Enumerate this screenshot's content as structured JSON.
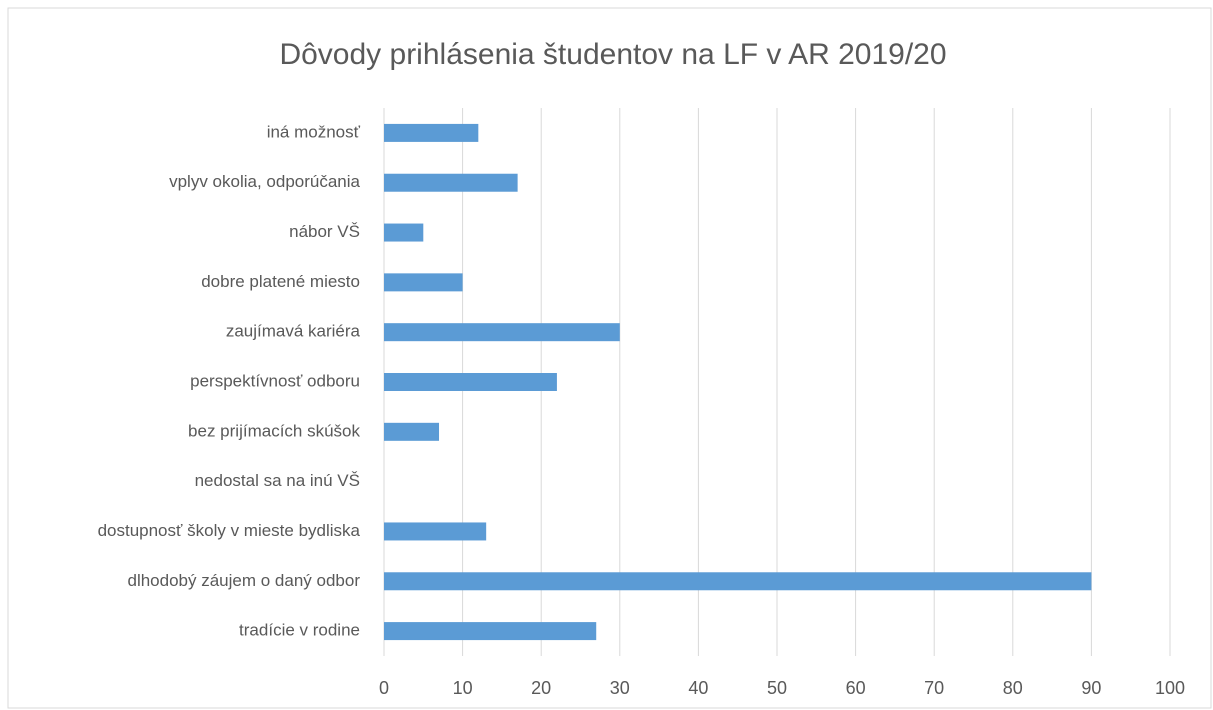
{
  "chart_data": {
    "type": "bar",
    "horizontal": true,
    "title": "Dôvody prihlásenia študentov na LF v AR 2019/20",
    "categories": [
      "iná možnosť",
      "vplyv okolia, odporúčania",
      "nábor VŠ",
      "dobre platené miesto",
      "zaujímavá kariéra",
      "perspektívnosť odboru",
      "bez prijímacích skúšok",
      "nedostal sa na inú VŠ",
      "dostupnosť školy v mieste bydliska",
      "dlhodobý záujem o daný odbor",
      "tradície v rodine"
    ],
    "values": [
      12,
      17,
      5,
      10,
      30,
      22,
      7,
      0,
      13,
      90,
      27
    ],
    "color": "#5b9bd5",
    "xlim": [
      0,
      100
    ],
    "xticks": [
      0,
      10,
      20,
      30,
      40,
      50,
      60,
      70,
      80,
      90,
      100
    ],
    "grid": true
  }
}
